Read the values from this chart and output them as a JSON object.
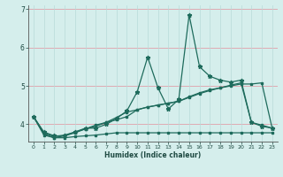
{
  "xlabel": "Humidex (Indice chaleur)",
  "x_values": [
    0,
    1,
    2,
    3,
    4,
    5,
    6,
    7,
    8,
    9,
    10,
    11,
    12,
    13,
    14,
    15,
    16,
    17,
    18,
    19,
    20,
    21,
    22,
    23
  ],
  "series1": [
    4.2,
    3.8,
    3.7,
    3.7,
    3.8,
    3.9,
    3.9,
    4.0,
    4.15,
    4.35,
    4.85,
    5.75,
    4.95,
    4.4,
    4.65,
    6.85,
    5.5,
    5.25,
    5.15,
    5.1,
    5.15,
    4.05,
    3.95,
    3.9
  ],
  "series2": [
    4.2,
    3.78,
    3.68,
    3.72,
    3.8,
    3.88,
    3.95,
    4.05,
    4.18,
    4.32,
    4.38,
    4.45,
    4.5,
    4.55,
    4.6,
    4.72,
    4.82,
    4.9,
    4.95,
    5.0,
    5.05,
    5.05,
    5.08,
    3.9
  ],
  "series3": [
    4.2,
    3.72,
    3.65,
    3.65,
    3.68,
    3.7,
    3.72,
    3.75,
    3.78,
    3.78,
    3.78,
    3.78,
    3.78,
    3.78,
    3.78,
    3.78,
    3.78,
    3.78,
    3.78,
    3.78,
    3.78,
    3.78,
    3.78,
    3.78
  ],
  "series4": [
    4.2,
    3.75,
    3.65,
    3.7,
    3.78,
    3.88,
    3.98,
    4.05,
    4.12,
    4.2,
    4.38,
    4.45,
    4.5,
    4.55,
    4.6,
    4.7,
    4.8,
    4.88,
    4.95,
    5.02,
    5.08,
    4.05,
    3.98,
    3.9
  ],
  "line_color": "#1e6b5c",
  "bg_color": "#d5eeec",
  "vgrid_color": "#b8dbd9",
  "hgrid_color": "#e0a0aa",
  "ylim": [
    3.55,
    7.1
  ],
  "yticks": [
    4,
    5,
    6,
    7
  ],
  "xlim": [
    -0.5,
    23.5
  ]
}
